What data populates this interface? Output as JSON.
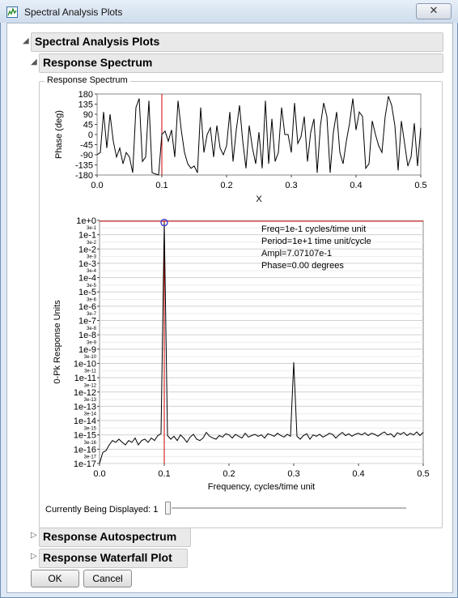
{
  "window": {
    "title": "Spectral Analysis Plots",
    "close_glyph": "✕"
  },
  "outline": {
    "main_title": "Spectral Analysis Plots",
    "response_spectrum_title": "Response Spectrum",
    "group_label": "Response Spectrum",
    "autospectrum_title": "Response Autospectrum",
    "waterfall_title": "Response Waterfall Plot"
  },
  "icons": {
    "app": "chart-spectrum-icon",
    "expanded": "triangle-expanded-icon",
    "collapsed": "triangle-collapsed-icon"
  },
  "colors": {
    "series": "#000000",
    "reference_line": "#cc0000",
    "marker": "#3333cc"
  },
  "chart_data": [
    {
      "type": "line",
      "xlabel": "X",
      "ylabel": "Phase (deg)",
      "xlim": [
        0,
        0.5
      ],
      "ylim": [
        -180,
        180
      ],
      "x_ticks": [
        "0.0",
        "0.1",
        "0.2",
        "0.3",
        "0.4",
        "0.5"
      ],
      "y_ticks": [
        "180",
        "135",
        "90",
        "45",
        "0",
        "-45",
        "-90",
        "-135",
        "-180"
      ],
      "reference_x": 0.1,
      "grid": false,
      "x": [
        0,
        0.005,
        0.01,
        0.015,
        0.02,
        0.025,
        0.03,
        0.035,
        0.04,
        0.045,
        0.05,
        0.055,
        0.06,
        0.065,
        0.07,
        0.075,
        0.08,
        0.085,
        0.09,
        0.095,
        0.1,
        0.105,
        0.11,
        0.115,
        0.12,
        0.125,
        0.13,
        0.135,
        0.14,
        0.145,
        0.15,
        0.155,
        0.16,
        0.165,
        0.17,
        0.175,
        0.18,
        0.185,
        0.19,
        0.195,
        0.2,
        0.205,
        0.21,
        0.215,
        0.22,
        0.225,
        0.23,
        0.235,
        0.24,
        0.245,
        0.25,
        0.255,
        0.26,
        0.265,
        0.27,
        0.275,
        0.28,
        0.285,
        0.29,
        0.295,
        0.3,
        0.305,
        0.31,
        0.315,
        0.32,
        0.325,
        0.33,
        0.335,
        0.34,
        0.345,
        0.35,
        0.355,
        0.36,
        0.365,
        0.37,
        0.375,
        0.38,
        0.385,
        0.39,
        0.395,
        0.4,
        0.405,
        0.41,
        0.415,
        0.42,
        0.425,
        0.43,
        0.435,
        0.44,
        0.445,
        0.45,
        0.455,
        0.46,
        0.465,
        0.47,
        0.475,
        0.48,
        0.485,
        0.49,
        0.495,
        0.5
      ],
      "values": [
        -90,
        -80,
        100,
        -60,
        90,
        -30,
        -100,
        -60,
        -130,
        -80,
        -100,
        -170,
        120,
        160,
        -120,
        -100,
        150,
        -170,
        -175,
        -180,
        0,
        15,
        -30,
        20,
        -100,
        150,
        20,
        -80,
        -130,
        -150,
        -140,
        -170,
        120,
        -80,
        0,
        30,
        -100,
        40,
        -60,
        -90,
        -50,
        100,
        -120,
        20,
        130,
        -30,
        -150,
        40,
        -60,
        -130,
        10,
        -150,
        150,
        -130,
        70,
        -120,
        -80,
        120,
        0,
        0,
        -80,
        140,
        -40,
        -10,
        80,
        -120,
        10,
        70,
        -170,
        40,
        140,
        80,
        -170,
        10,
        100,
        -80,
        -130,
        -30,
        50,
        160,
        20,
        100,
        80,
        -150,
        -130,
        60,
        0,
        -50,
        -80,
        80,
        170,
        130,
        40,
        -160,
        60,
        -40,
        -140,
        -100,
        50,
        -140,
        30
      ]
    },
    {
      "type": "line",
      "xlabel": "Frequency, cycles/time unit",
      "ylabel": "0-Pk Response Units",
      "xlim": [
        0,
        0.5
      ],
      "ylim": [
        1e-17,
        1
      ],
      "log_scale_y": true,
      "grid": true,
      "x_ticks": [
        "0.0",
        "0.1",
        "0.2",
        "0.3",
        "0.4",
        "0.5"
      ],
      "y_ticks": [
        "1e+0",
        "1e-1",
        "1e-2",
        "1e-3",
        "1e-4",
        "1e-5",
        "1e-6",
        "1e-7",
        "1e-8",
        "1e-9",
        "1e-10",
        "1e-11",
        "1e-12",
        "1e-13",
        "1e-14",
        "1e-15",
        "1e-16",
        "1e-17"
      ],
      "y_minor_ticks": [
        "3e-1",
        "3e-2",
        "3e-3",
        "3e-4",
        "3e-5",
        "3e-6",
        "3e-7",
        "3e-8",
        "3e-9",
        "3e-10",
        "3e-11",
        "3e-12",
        "3e-13",
        "3e-14",
        "3e-15",
        "3e-16",
        "3e-17"
      ],
      "reference_x": 0.1,
      "reference_y": 1,
      "marker": {
        "x": 0.1,
        "y": 0.707107
      },
      "annotation": [
        "Freq=1e-1 cycles/time unit",
        "Period=1e+1 time unit/cycle",
        "Ampl=7.07107e-1",
        "Phase=0.00 degrees"
      ],
      "x": [
        0,
        0.005,
        0.01,
        0.015,
        0.02,
        0.025,
        0.03,
        0.035,
        0.04,
        0.045,
        0.05,
        0.055,
        0.06,
        0.065,
        0.07,
        0.075,
        0.08,
        0.085,
        0.09,
        0.095,
        0.1,
        0.105,
        0.11,
        0.115,
        0.12,
        0.125,
        0.13,
        0.135,
        0.14,
        0.145,
        0.15,
        0.155,
        0.16,
        0.165,
        0.17,
        0.175,
        0.18,
        0.185,
        0.19,
        0.195,
        0.2,
        0.205,
        0.21,
        0.215,
        0.22,
        0.225,
        0.23,
        0.235,
        0.24,
        0.245,
        0.25,
        0.255,
        0.26,
        0.265,
        0.27,
        0.275,
        0.28,
        0.285,
        0.29,
        0.295,
        0.3,
        0.305,
        0.31,
        0.315,
        0.32,
        0.325,
        0.33,
        0.335,
        0.34,
        0.345,
        0.35,
        0.355,
        0.36,
        0.365,
        0.37,
        0.375,
        0.38,
        0.385,
        0.39,
        0.395,
        0.4,
        0.405,
        0.41,
        0.415,
        0.42,
        0.425,
        0.43,
        0.435,
        0.44,
        0.445,
        0.45,
        0.455,
        0.46,
        0.465,
        0.47,
        0.475,
        0.48,
        0.485,
        0.49,
        0.495,
        0.5
      ],
      "values": [
        1e-17,
        6e-17,
        8e-17,
        2e-16,
        4e-16,
        3e-16,
        5e-16,
        3e-16,
        2e-16,
        4e-16,
        3e-16,
        6e-16,
        2e-16,
        4e-16,
        5e-16,
        3e-16,
        6e-16,
        4e-16,
        9e-16,
        1.2e-15,
        0.707107,
        9e-16,
        5e-16,
        8e-16,
        4e-16,
        1e-15,
        6e-16,
        3e-16,
        7e-16,
        1.1e-15,
        5e-16,
        4e-16,
        6e-16,
        1.5e-15,
        8e-16,
        6e-16,
        5e-16,
        9e-16,
        7e-16,
        1.2e-15,
        1e-15,
        6e-16,
        1.1e-15,
        8e-16,
        6e-16,
        1.3e-15,
        7e-16,
        9e-16,
        1.1e-15,
        8e-16,
        1e-15,
        6e-16,
        1.2e-15,
        1e-15,
        8e-16,
        1.3e-15,
        9e-16,
        7e-16,
        1.1e-15,
        8e-16,
        1.2e-10,
        8e-16,
        5e-16,
        9e-16,
        1.2e-15,
        5e-16,
        1e-15,
        8e-16,
        1.1e-15,
        7e-16,
        9e-16,
        1.3e-15,
        1.1e-15,
        6e-16,
        1e-15,
        1.5e-15,
        9e-16,
        1.2e-15,
        8e-16,
        1.1e-15,
        1.3e-15,
        1e-15,
        1.4e-15,
        9e-16,
        1.3e-15,
        1.1e-15,
        8e-16,
        1.2e-15,
        1.6e-15,
        1e-15,
        1.2e-15,
        7e-16,
        1.4e-15,
        1.1e-15,
        1.5e-15,
        9e-16,
        1.3e-15,
        1e-15,
        1.6e-15,
        9e-16,
        1.5e-15
      ]
    }
  ],
  "slider": {
    "label": "Currently Being Displayed: 1",
    "value_fraction": 0
  },
  "buttons": {
    "ok": "OK",
    "cancel": "Cancel"
  }
}
